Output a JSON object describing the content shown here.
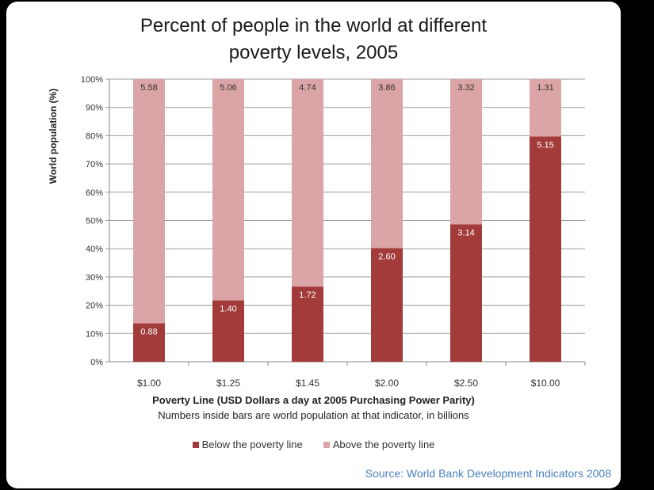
{
  "chart_data": {
    "type": "bar",
    "stacked": true,
    "title_lines": [
      "Percent of people in the world at different",
      "poverty levels, 2005"
    ],
    "ylabel": "World population (%)",
    "xlabel": "Poverty Line (USD Dollars a day at 2005 Purchasing Power Parity)",
    "note": "Numbers inside bars are world population at that indicator, in billions",
    "source": "Source: World Bank Development Indicators 2008",
    "categories": [
      "$1.00",
      "$1.25",
      "$1.45",
      "$2.00",
      "$2.50",
      "$10.00"
    ],
    "yticks": [
      "0%",
      "10%",
      "20%",
      "30%",
      "40%",
      "50%",
      "60%",
      "70%",
      "80%",
      "90%",
      "100%"
    ],
    "ylim": [
      0,
      100
    ],
    "grid": true,
    "legend_position": "bottom",
    "series": [
      {
        "name": "Below the poverty line",
        "color": "#a33b3b",
        "percent": [
          13.6,
          21.7,
          26.6,
          40.2,
          48.6,
          79.7
        ],
        "labels": [
          "0.88",
          "1.40",
          "1.72",
          "2.60",
          "3.14",
          "5.15"
        ]
      },
      {
        "name": "Above the poverty line",
        "color": "#dba4a6",
        "percent": [
          86.4,
          78.3,
          73.4,
          59.8,
          51.4,
          20.3
        ],
        "labels": [
          "5.58",
          "5.06",
          "4.74",
          "3.86",
          "3.32",
          "1.31"
        ]
      }
    ]
  }
}
